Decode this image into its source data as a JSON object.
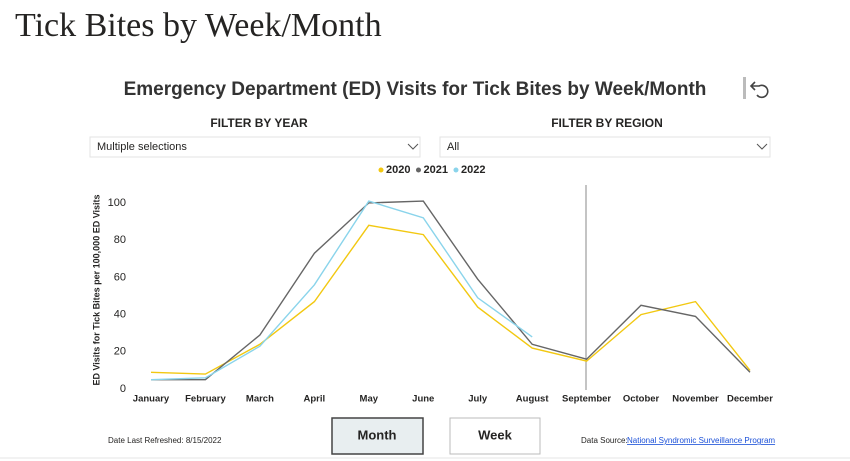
{
  "page_title": "Tick Bites by Week/Month",
  "filters": [
    {
      "label": "FILTER BY YEAR",
      "value": "Multiple selections"
    },
    {
      "label": "FILTER BY REGION",
      "value": "All"
    }
  ],
  "buttons": [
    "Month",
    "Week"
  ],
  "footer": {
    "refreshed": "Date Last Refreshed: 8/15/2022",
    "source_label": "Data Source:",
    "source_link": "National Syndromic Surveillance Program"
  },
  "chart_data": {
    "type": "line",
    "title": "Emergency Department (ED) Visits for Tick Bites by Week/Month",
    "y_label": "ED Visits for Tick Bites per 100,000 ED Visits",
    "categories": [
      "January",
      "February",
      "March",
      "April",
      "May",
      "June",
      "July",
      "August",
      "September",
      "October",
      "November",
      "December"
    ],
    "series": [
      {
        "name": "2020",
        "color": "#f2c811",
        "values": [
          9,
          8,
          24,
          47,
          88,
          83,
          44,
          22,
          15,
          40,
          47,
          10
        ]
      },
      {
        "name": "2021",
        "color": "#666666",
        "values": [
          5,
          5,
          29,
          73,
          100,
          101,
          59,
          24,
          16,
          45,
          39,
          9
        ]
      },
      {
        "name": "2022",
        "color": "#8ad4eb",
        "values": [
          5,
          6,
          23,
          56,
          101,
          92,
          49,
          28,
          null,
          null,
          null,
          null
        ]
      }
    ],
    "ylim": [
      0,
      104
    ],
    "yticks": [
      0,
      20,
      40,
      60,
      80,
      100
    ],
    "grid": false
  }
}
